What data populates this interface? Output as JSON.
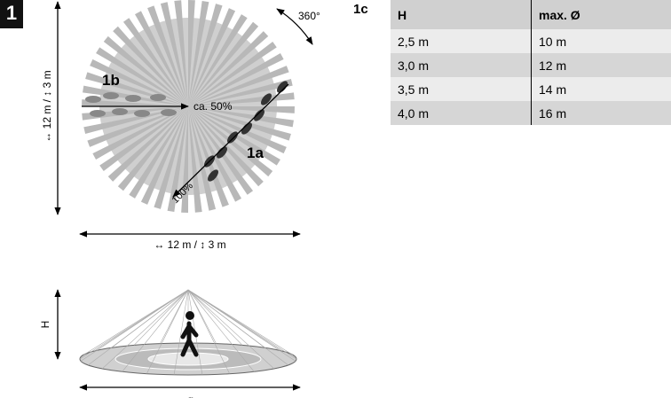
{
  "badge": "1",
  "rotation": "360°",
  "zones": {
    "tangential": "1b",
    "tangential_reach": "ca. 50%",
    "radial": "1a",
    "radial_reach": "100%"
  },
  "dimensions": {
    "vertical": "↔ 12 m / ↕ 3 m",
    "horizontal": "↔ 12 m / ↕ 3 m",
    "height": "H",
    "diameter": "ø"
  },
  "table": {
    "label": "1c",
    "header": [
      "H",
      "max. Ø"
    ],
    "rows": [
      [
        "2,5 m",
        "10 m"
      ],
      [
        "3,0 m",
        "12 m"
      ],
      [
        "3,5 m",
        "14 m"
      ],
      [
        "4,0 m",
        "16 m"
      ]
    ]
  }
}
